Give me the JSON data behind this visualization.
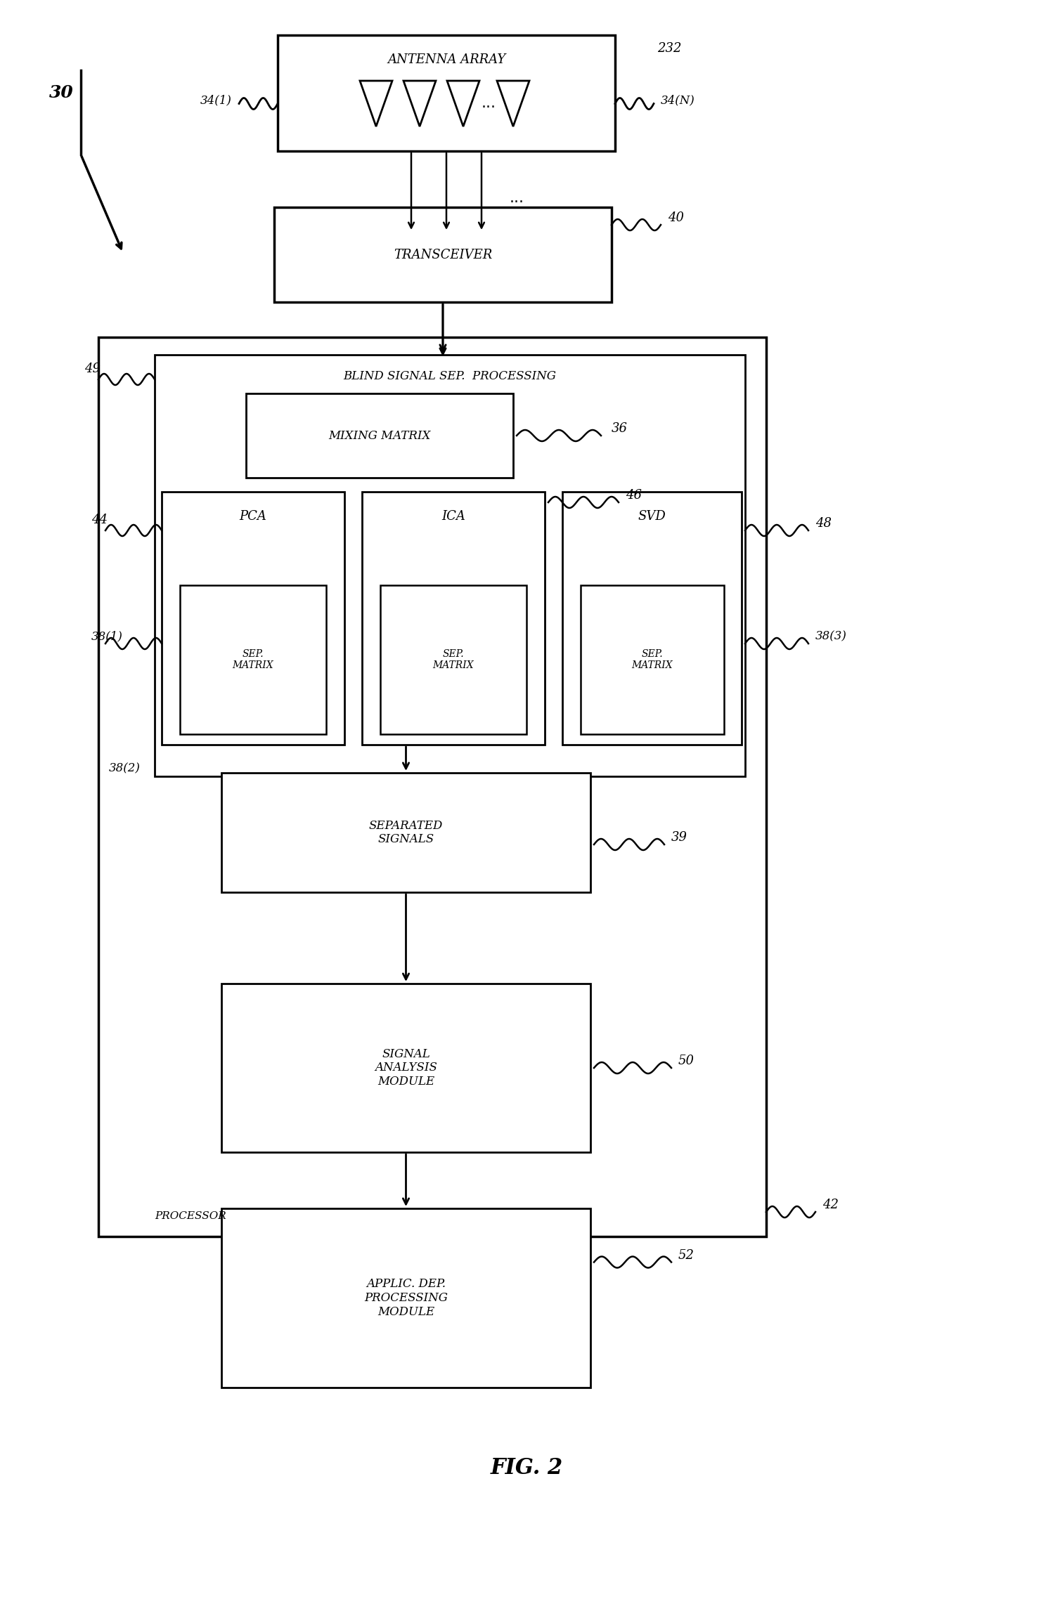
{
  "bg_color": "#ffffff",
  "fig_label": "FIG. 2",
  "ref_30": "30",
  "ref_32": "232",
  "ref_34_1": "34(1)",
  "ref_34_n": "34(N)",
  "ref_40": "40",
  "ref_49": "49",
  "ref_36": "36",
  "ref_46": "46",
  "ref_48": "48",
  "ref_44": "44",
  "ref_38_1": "38(1)",
  "ref_38_2": "38(2)",
  "ref_38_3": "38(3)",
  "ref_39": "39",
  "ref_50": "50",
  "ref_52": "52",
  "ref_42": "42",
  "box_antenna": "ANTENNA ARRAY",
  "box_transceiver": "TRANSCEIVER",
  "box_bss": "BLIND SIGNAL SEP.  PROCESSING",
  "box_mixing": "MIXING MATRIX",
  "box_pca": "PCA",
  "box_ica": "ICA",
  "box_svd": "SVD",
  "box_sep": "SEP.\nMATRIX",
  "box_separated": "SEPARATED\nSIGNALS",
  "box_signal_analysis": "SIGNAL\nANALYSIS\nMODULE",
  "box_applic": "APPLIC. DEP.\nPROCESSING\nMODULE",
  "box_processor": "PROCESSOR"
}
